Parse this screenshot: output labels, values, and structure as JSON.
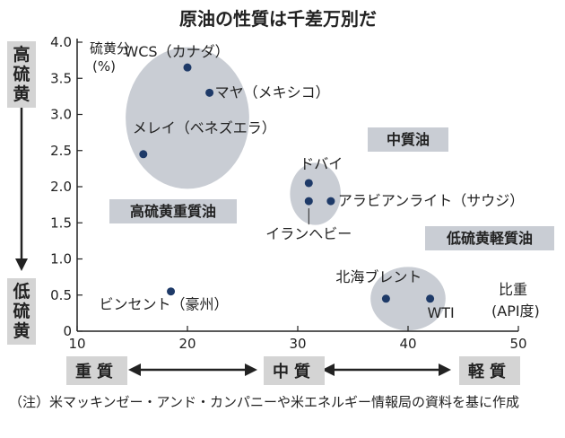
{
  "chart_data": {
    "type": "scatter",
    "title": "原油の性質は千差万別だ",
    "ylabel": "硫黄分\n(%)",
    "xlabel": "比重\n(API度)",
    "xlim": [
      10,
      50
    ],
    "ylim": [
      0,
      4.0
    ],
    "xticks": [
      10,
      20,
      30,
      40,
      50
    ],
    "yticks": [
      0,
      0.5,
      1.0,
      1.5,
      2.0,
      2.5,
      3.0,
      3.5,
      4.0
    ],
    "ytick_labels": [
      "0",
      "0.5",
      "1.0",
      "1.5",
      "2.0",
      "2.5",
      "3.0",
      "3.5",
      "4.0"
    ],
    "points": [
      {
        "label": "WCS（カナダ）",
        "x": 20,
        "y": 3.65
      },
      {
        "label": "マヤ（メキシコ）",
        "x": 22,
        "y": 3.3
      },
      {
        "label": "メレイ（ベネズエラ）",
        "x": 16,
        "y": 2.45
      },
      {
        "label": "ドバイ",
        "x": 31,
        "y": 2.05
      },
      {
        "label": "アラビアンライト（サウジ）",
        "x": 33,
        "y": 1.8
      },
      {
        "label": "イランヘビー",
        "x": 31,
        "y": 1.8
      },
      {
        "label": "北海ブレント",
        "x": 38,
        "y": 0.45
      },
      {
        "label": "WTI",
        "x": 42,
        "y": 0.45
      },
      {
        "label": "ビンセント（豪州）",
        "x": 18.5,
        "y": 0.55
      }
    ],
    "groups": [
      {
        "label": "高硫黄重質油",
        "cx": 20,
        "cy": 2.95,
        "rx": 5.6,
        "ry": 0.98
      },
      {
        "label": "中質油",
        "cx": 31.6,
        "cy": 1.9,
        "rx": 2.3,
        "ry": 0.43
      },
      {
        "label": "低硫黄軽質油",
        "cx": 40,
        "cy": 0.45,
        "rx": 3.4,
        "ry": 0.44
      }
    ],
    "accent_color": "#1e3a68",
    "group_fill": "#c9cdd4"
  },
  "side": {
    "top": "高硫黄",
    "bottom": "低硫黄"
  },
  "bottom": {
    "left": "重質",
    "middle": "中質",
    "right": "軽質"
  },
  "note": "（注）米マッキンゼー・アンド・カンパニーや米エネルギー情報局の資料を基に作成"
}
